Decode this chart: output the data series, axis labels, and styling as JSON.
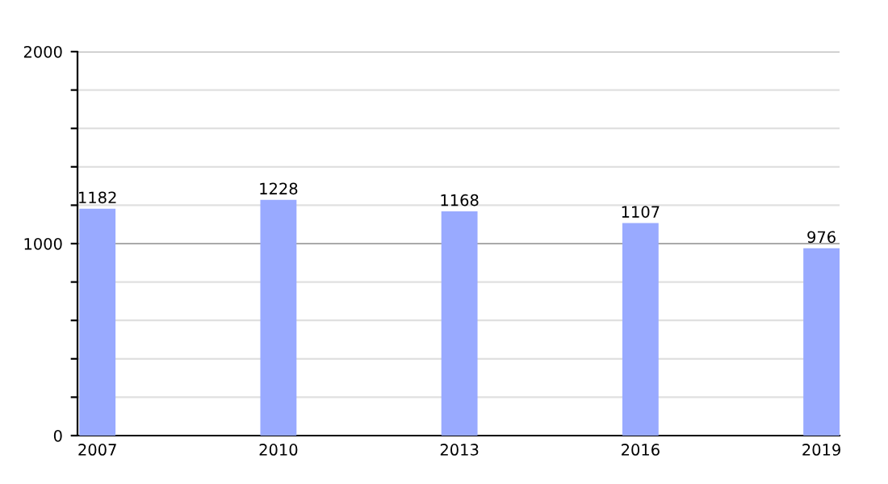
{
  "chart_data": {
    "type": "bar",
    "categories": [
      "2007",
      "2010",
      "2013",
      "2016",
      "2019"
    ],
    "values": [
      1182,
      1228,
      1168,
      1107,
      976
    ],
    "color": "#99aaff",
    "data_labels": true,
    "ylim": [
      0,
      2000
    ],
    "yticks": [
      0,
      {
        "value": 200,
        "label": null
      },
      {
        "value": 400,
        "label": null
      },
      {
        "value": 600,
        "label": null
      },
      {
        "value": 800,
        "label": null
      },
      1000,
      {
        "value": 1200,
        "label": null
      },
      {
        "value": 1400,
        "label": null
      },
      {
        "value": 1600,
        "label": null
      },
      {
        "value": 1800,
        "label": null
      },
      2000
    ],
    "grid": true,
    "ref_lines": [
      {
        "axis": "y",
        "value": 1000,
        "color": "#aaaaaa"
      }
    ]
  }
}
